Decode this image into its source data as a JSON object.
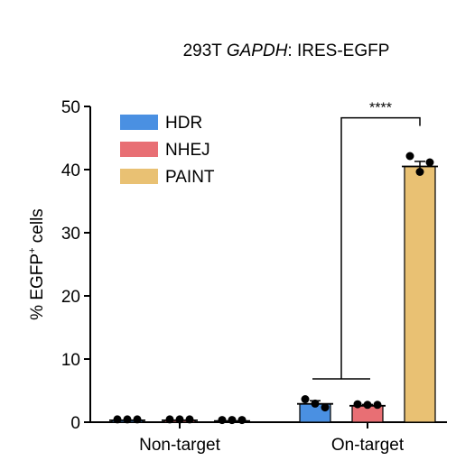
{
  "chart_data": {
    "type": "bar",
    "title_prefix": "293T ",
    "title_gene": "GAPDH",
    "title_suffix": ": IRES-EGFP",
    "ylabel_main": "% EGFP",
    "ylabel_sup": "+",
    "ylabel_tail": " cells",
    "ylim": [
      0,
      50
    ],
    "yticks": [
      "0",
      "10",
      "20",
      "30",
      "40",
      "50"
    ],
    "categories": [
      "Non-target",
      "On-target"
    ],
    "series": [
      {
        "name": "HDR",
        "color": "#4a90e2",
        "values": [
          0.3,
          2.9
        ],
        "sem": [
          0.1,
          0.5
        ],
        "points": [
          [
            0.3,
            0.3,
            0.3
          ],
          [
            3.5,
            2.8,
            2.2
          ]
        ]
      },
      {
        "name": "NHEJ",
        "color": "#e86f74",
        "values": [
          0.3,
          2.6
        ],
        "sem": [
          0.1,
          0.2
        ],
        "points": [
          [
            0.3,
            0.3,
            0.3
          ],
          [
            2.7,
            2.6,
            2.6
          ]
        ]
      },
      {
        "name": "PAINT",
        "color": "#e9c173",
        "values": [
          0.2,
          40.5
        ],
        "sem": [
          0.1,
          0.8
        ],
        "points": [
          [
            0.2,
            0.2,
            0.2
          ],
          [
            42,
            39.5,
            41
          ]
        ]
      }
    ],
    "significance": {
      "label": "****"
    },
    "grid": false,
    "legend": "top-left"
  }
}
